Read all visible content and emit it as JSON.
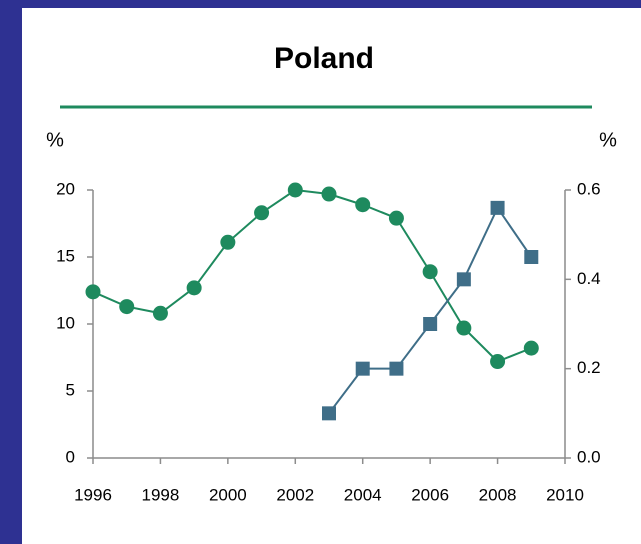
{
  "chart_data": {
    "type": "line",
    "title": "Poland",
    "y_label": "%",
    "y2_label": "%",
    "x": [
      1996,
      1997,
      1998,
      1999,
      2000,
      2001,
      2002,
      2003,
      2004,
      2005,
      2006,
      2007,
      2008,
      2009
    ],
    "series": [
      {
        "color": "#1e8a5e",
        "marker": "circle",
        "values": [
          12.4,
          11.3,
          10.8,
          12.7,
          16.1,
          18.3,
          20.0,
          19.7,
          18.9,
          17.9,
          13.9,
          9.7,
          7.2,
          8.2
        ]
      },
      {
        "color": "#3f6e88",
        "marker": "square",
        "axis": "y2",
        "values": [
          null,
          null,
          null,
          null,
          null,
          null,
          null,
          0.1,
          0.2,
          0.2,
          0.3,
          0.4,
          0.56,
          0.45
        ]
      }
    ],
    "xlim": [
      1996,
      2010
    ],
    "xticks": [
      1996,
      1998,
      2000,
      2002,
      2004,
      2006,
      2008,
      2010
    ],
    "ylim": [
      0,
      20
    ],
    "yticks": [
      0,
      5,
      10,
      15,
      20
    ],
    "y2lim": [
      0,
      0.6
    ],
    "y2ticks": [
      {
        "value": 0,
        "label": "0.0"
      },
      0.2,
      0.4,
      0.6
    ],
    "grid": false
  }
}
